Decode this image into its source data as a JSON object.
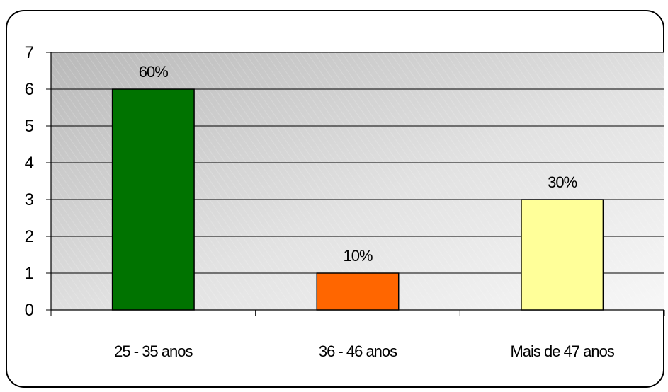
{
  "chart_data": {
    "type": "bar",
    "categories": [
      "25 - 35 anos",
      "36 - 46 anos",
      "Mais de 47 anos"
    ],
    "values": [
      6,
      1,
      3
    ],
    "data_labels": [
      "60%",
      "10%",
      "30%"
    ],
    "colors": [
      "#007300",
      "#ff6600",
      "#ffff99"
    ],
    "ylim": [
      0,
      7
    ],
    "yticks": [
      "0",
      "1",
      "2",
      "3",
      "4",
      "5",
      "6",
      "7"
    ],
    "grid": true,
    "title": "",
    "xlabel": "",
    "ylabel": ""
  }
}
